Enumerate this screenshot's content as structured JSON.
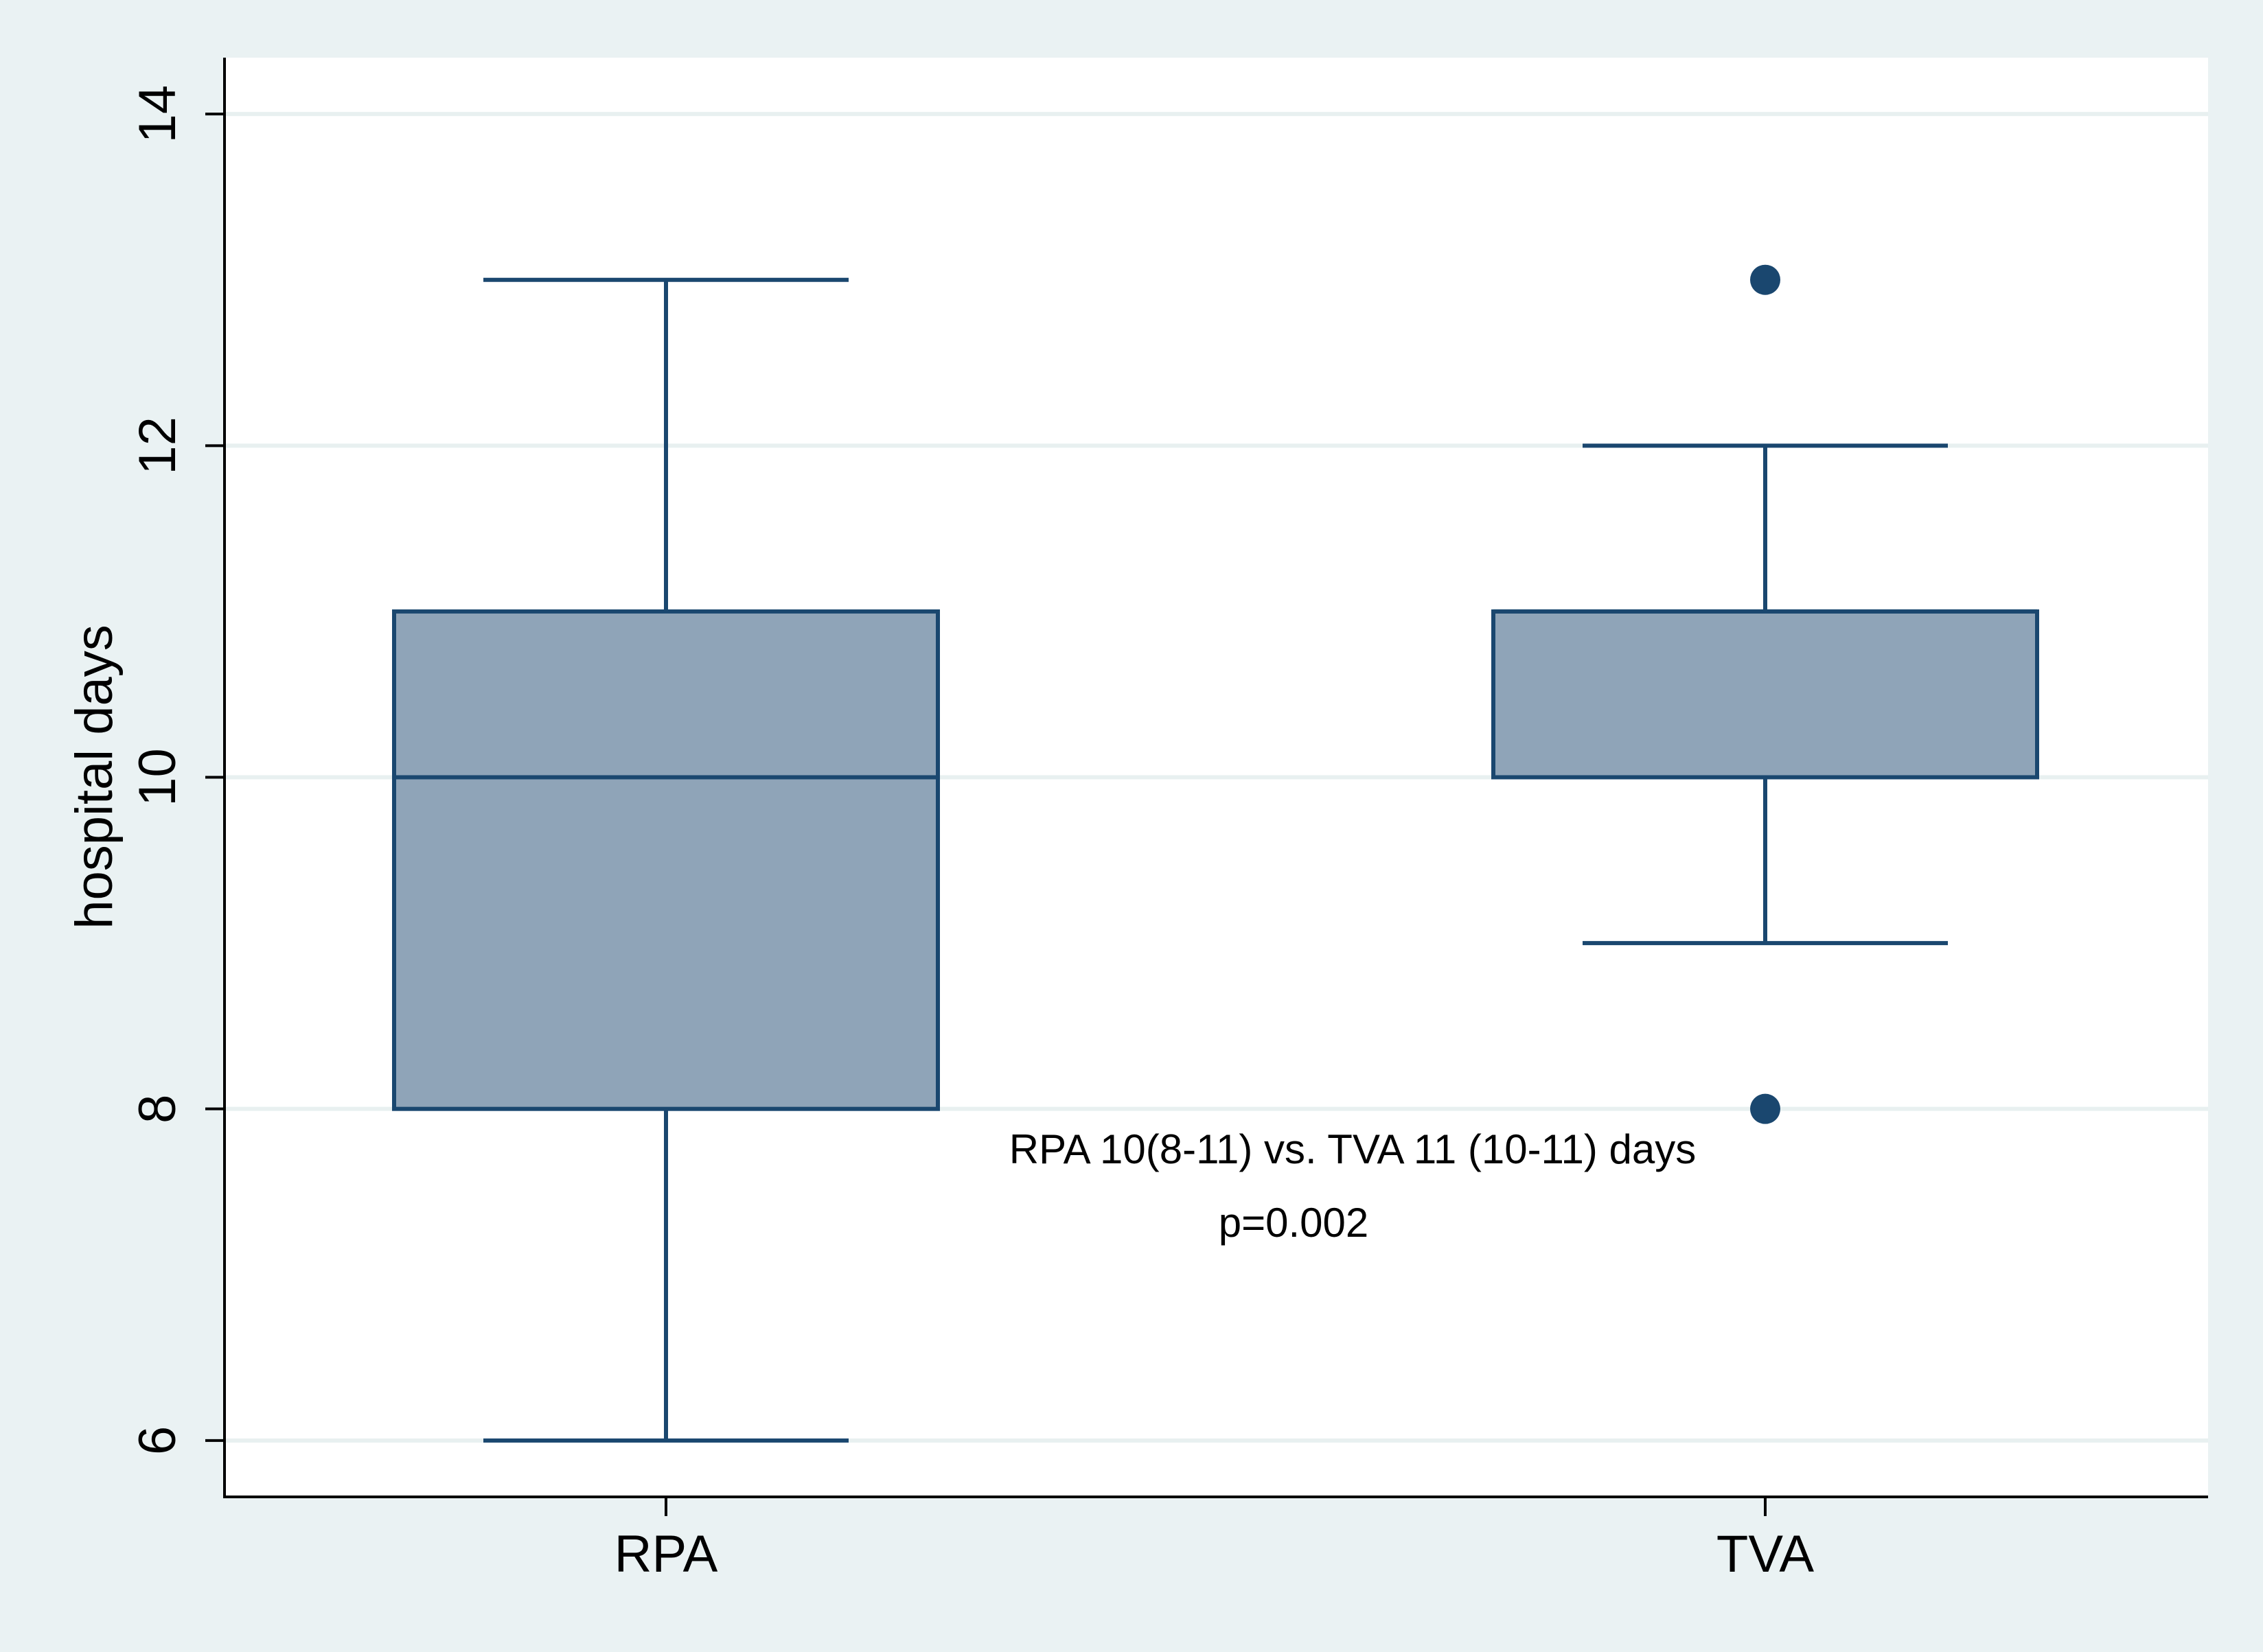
{
  "chart_data": {
    "type": "box",
    "xlabel": "",
    "ylabel": "hospital days",
    "ylim": [
      5.66,
      14.34
    ],
    "yticks": [
      6,
      8,
      10,
      12,
      14
    ],
    "grid": true,
    "legend": "none",
    "categories": [
      "RPA",
      "TVA"
    ],
    "boxes": [
      {
        "name": "RPA",
        "whisker_low": 6,
        "q1": 8,
        "median": 10,
        "q3": 11,
        "whisker_high": 13,
        "outliers": []
      },
      {
        "name": "TVA",
        "whisker_low": 9,
        "q1": 10,
        "median": 11,
        "q3": 11,
        "whisker_high": 12,
        "outliers": [
          13,
          8
        ]
      }
    ],
    "annotations": [
      "RPA 10(8-11) vs. TVA 11 (10-11) days",
      "p=0.002"
    ],
    "colors": {
      "background": "#eaf2f3",
      "plot_background": "#ffffff",
      "box_fill": "#8fa4b8",
      "box_stroke": "#1a476f",
      "gridline": "#e8f0f0",
      "axis": "#000000"
    }
  }
}
